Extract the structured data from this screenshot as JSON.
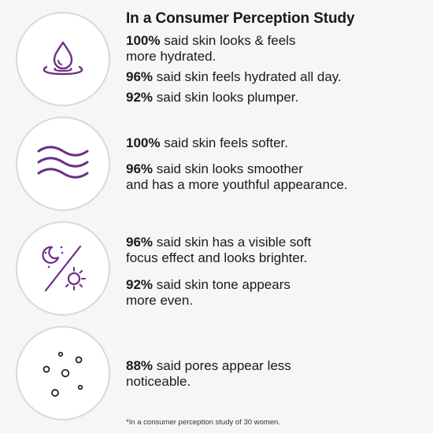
{
  "heading": "In a Consumer Perception Study",
  "groups": [
    {
      "icon": "water-drop-icon",
      "claims": [
        {
          "pct": "100%",
          "line1": " said skin looks & feels",
          "line2": "more hydrated."
        },
        {
          "pct": "96%",
          "line1": " said skin feels hydrated all day.",
          "line2": ""
        },
        {
          "pct": "92%",
          "line1": " said skin looks plumper.",
          "line2": ""
        }
      ]
    },
    {
      "icon": "waves-icon",
      "claims": [
        {
          "pct": "100%",
          "line1": " said skin feels softer.",
          "line2": ""
        },
        {
          "pct": "96%",
          "line1": " said skin looks smoother",
          "line2": "and has a more youthful appearance."
        }
      ]
    },
    {
      "icon": "moon-sun-icon",
      "claims": [
        {
          "pct": "96%",
          "line1": " said skin has a visible soft",
          "line2": "focus effect and looks brighter."
        },
        {
          "pct": "92%",
          "line1": " said skin tone appears",
          "line2": "more even."
        }
      ]
    },
    {
      "icon": "pores-dots-icon",
      "claims": [
        {
          "pct": "88%",
          "line1": " said pores appear less",
          "line2": "noticeable."
        }
      ]
    }
  ],
  "footnote": "*In a consumer perception study of 30 women.",
  "colors": {
    "accent": "#6a2f86",
    "text": "#1a1a1a",
    "circle_border": "#d9d9d9",
    "background": "#f6f6f6"
  }
}
